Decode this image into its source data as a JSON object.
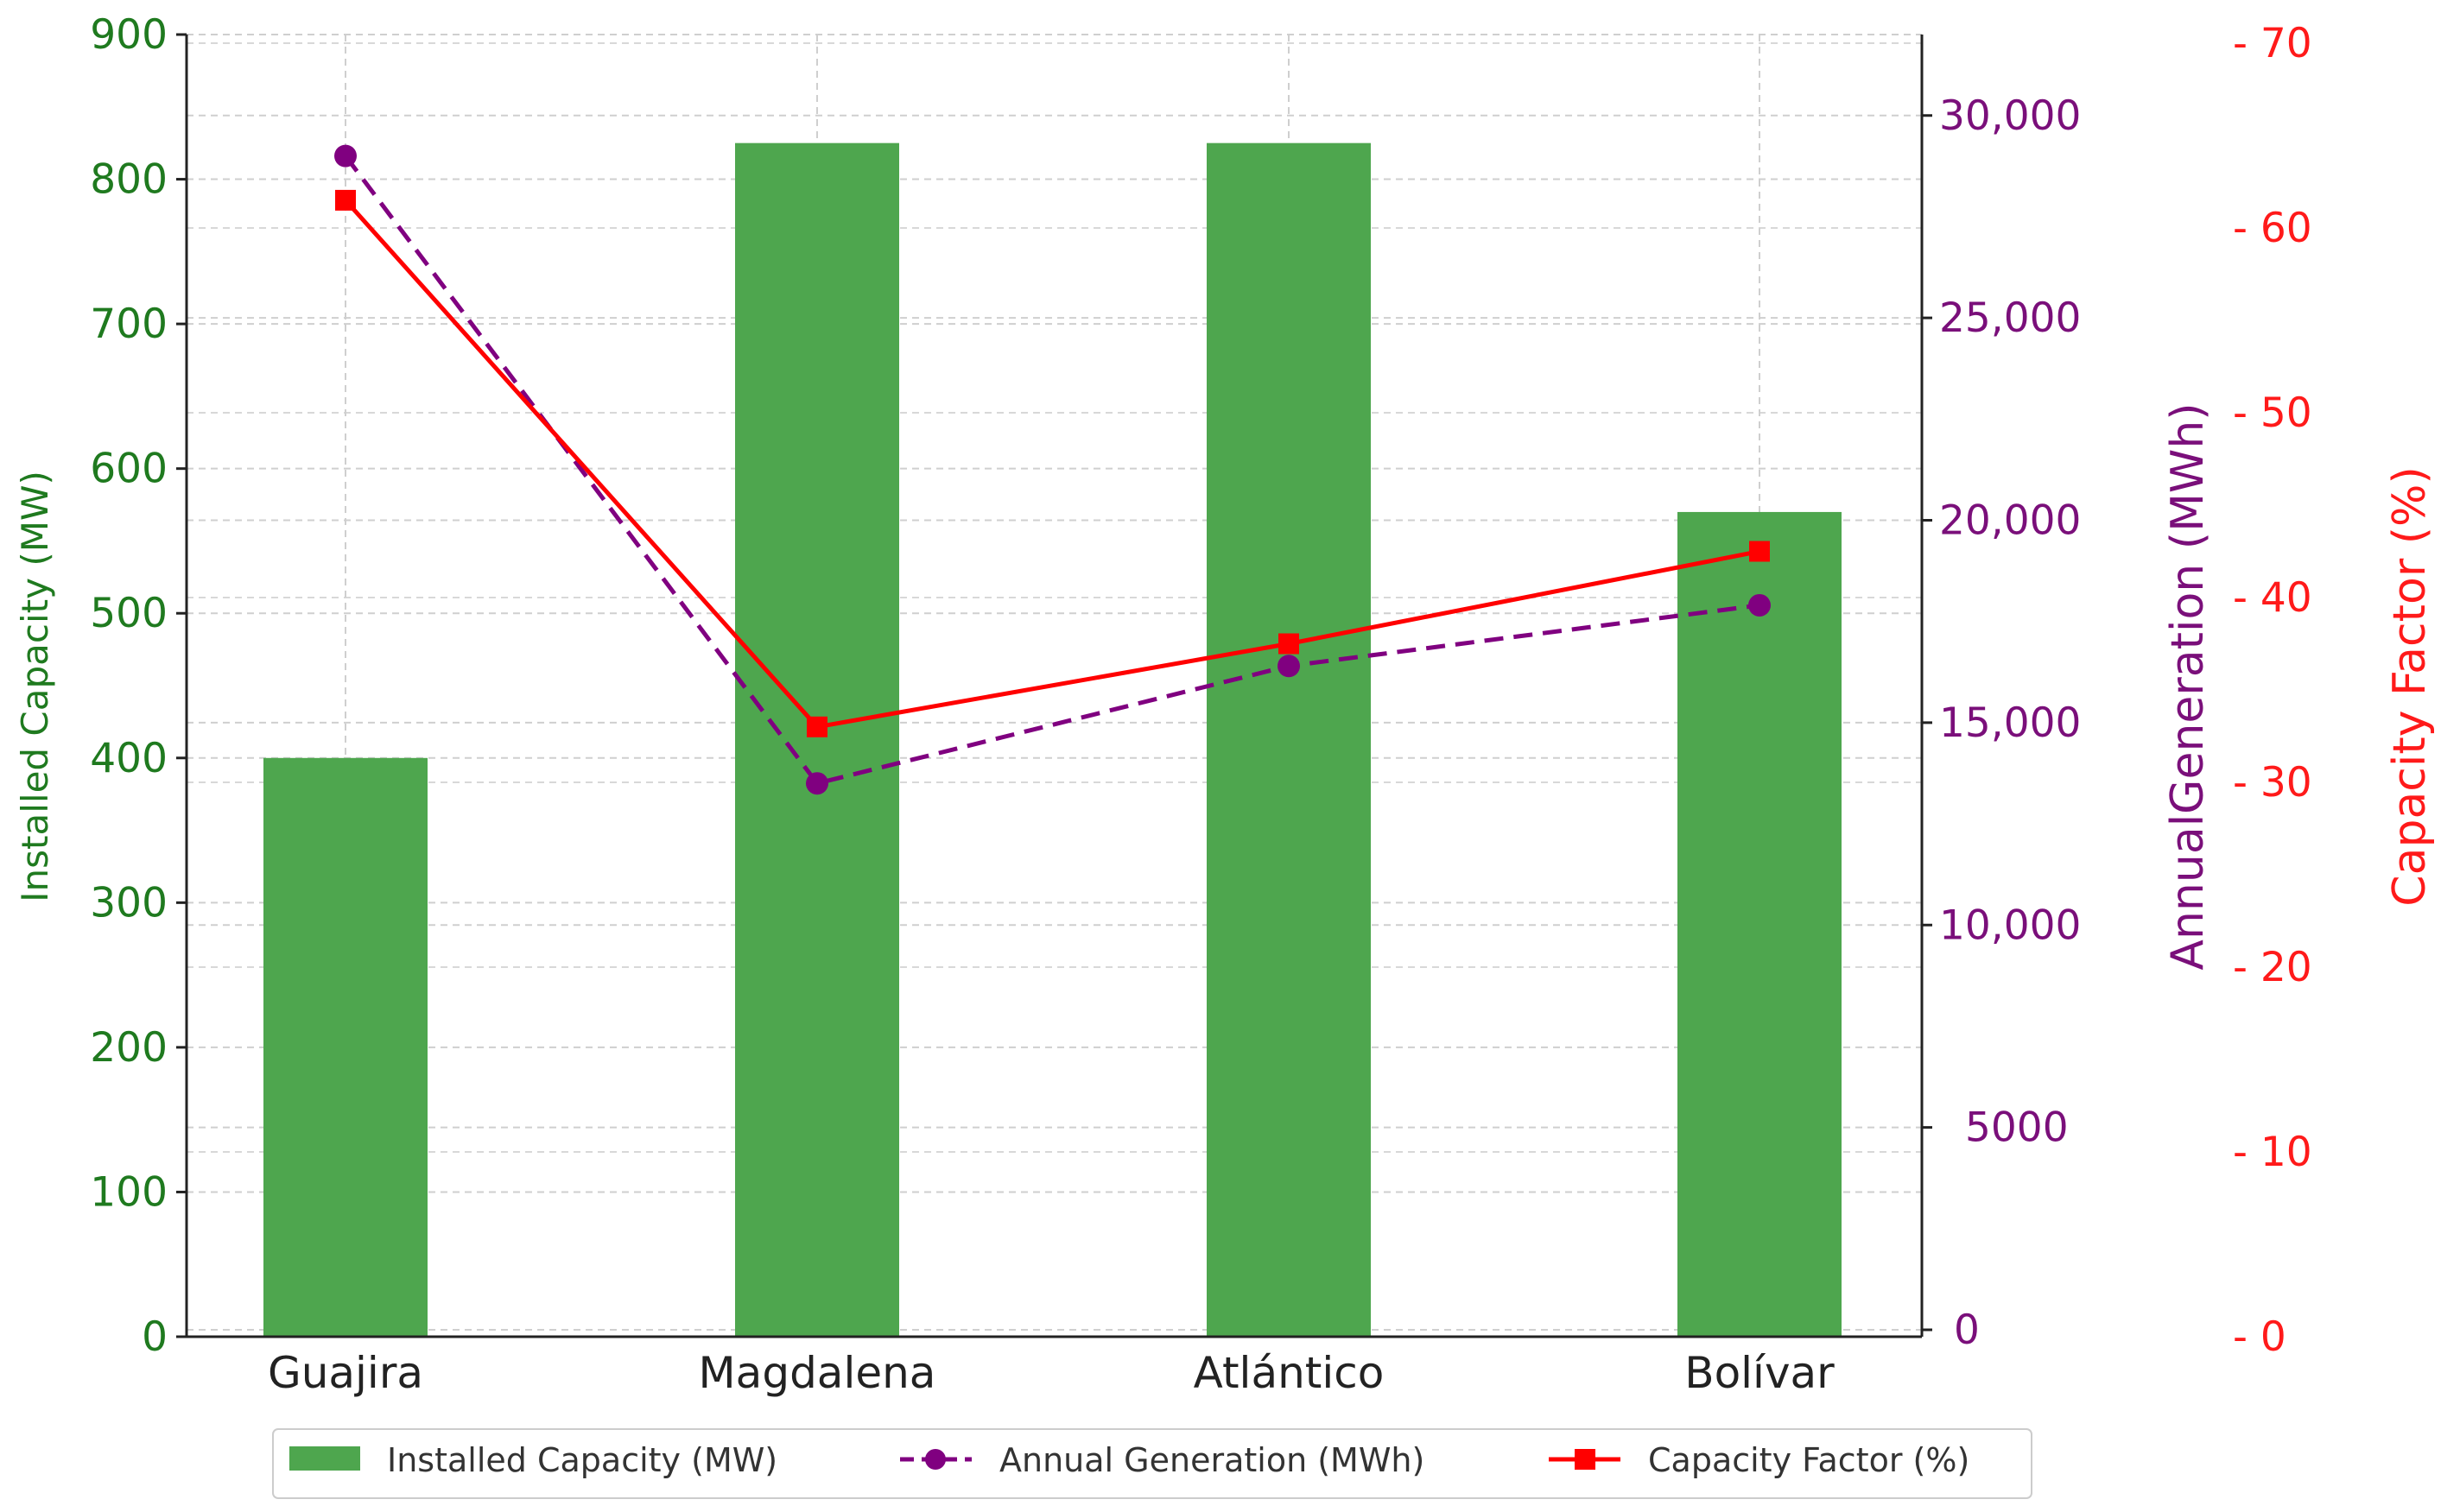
{
  "chart_data": {
    "type": "bar",
    "categories": [
      "Guajira",
      "Magdalena",
      "Atlántico",
      "Bolívar"
    ],
    "series": [
      {
        "name": "Installed Capacity (MW)",
        "type": "bar",
        "axis": "left",
        "color": "#4ea64e",
        "values": [
          400,
          825,
          825,
          570
        ]
      },
      {
        "name": "Annual Generation (MWh)",
        "type": "line",
        "style": "dashed",
        "marker": "circle",
        "axis": "middle",
        "color": "#800080",
        "values": [
          29000,
          13500,
          16400,
          17900
        ]
      },
      {
        "name": "Capacity Factor (%)",
        "type": "line",
        "style": "solid",
        "marker": "square",
        "axis": "right",
        "color": "#ff0000",
        "values": [
          61.5,
          33,
          37.5,
          42.5
        ]
      }
    ],
    "axes": {
      "left": {
        "label": "Installed Capacity (MW)",
        "range": [
          0,
          900
        ],
        "ticks": [
          0,
          100,
          200,
          300,
          400,
          500,
          600,
          700,
          800,
          900
        ],
        "tick_labels": [
          "0",
          "100",
          "200",
          "300",
          "400",
          "500",
          "600",
          "700",
          "800",
          "900"
        ],
        "color": "#1f7a1f"
      },
      "middle": {
        "label": "AnnualGeneration (MWh)",
        "range": [
          0,
          32000
        ],
        "ticks": [
          0,
          5000,
          10000,
          15000,
          20000,
          25000,
          30000
        ],
        "tick_labels": [
          "0",
          "5000",
          "10,000",
          "15,000",
          "20,000",
          "25,000",
          "30,000"
        ],
        "color": "#7a0f7a"
      },
      "right": {
        "label": "Capacity Factor (%)",
        "range": [
          0,
          70
        ],
        "ticks": [
          0,
          10,
          20,
          30,
          40,
          50,
          60,
          70
        ],
        "tick_labels": [
          "- 0",
          "- 10",
          "- 20",
          "- 30",
          "- 40",
          "- 50",
          "- 60",
          "- 70"
        ],
        "color": "#ff1a1a"
      }
    },
    "grid": true,
    "legend_position": "bottom"
  }
}
